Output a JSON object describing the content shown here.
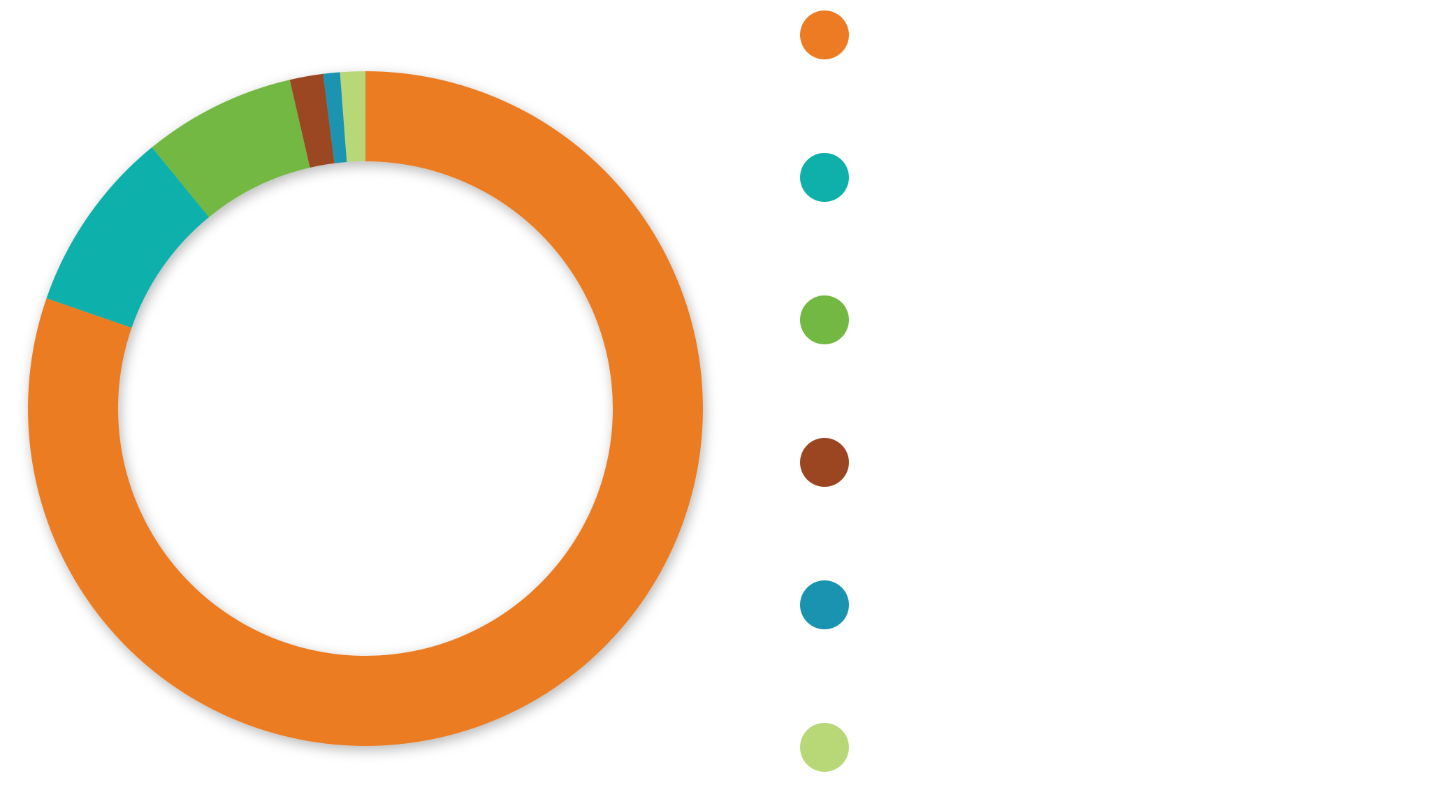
{
  "chart_data": {
    "type": "pie",
    "donut": true,
    "start": "top",
    "direction": "clockwise",
    "legend_position": "right",
    "slices": [
      {
        "color": "#EC7B24",
        "value": 80.3
      },
      {
        "color": "#10B0AA",
        "value": 8.8
      },
      {
        "color": "#73B843",
        "value": 7.3
      },
      {
        "color": "#9B4621",
        "value": 1.6
      },
      {
        "color": "#1A93B1",
        "value": 0.8
      },
      {
        "color": "#B8D877",
        "value": 1.2
      }
    ]
  }
}
